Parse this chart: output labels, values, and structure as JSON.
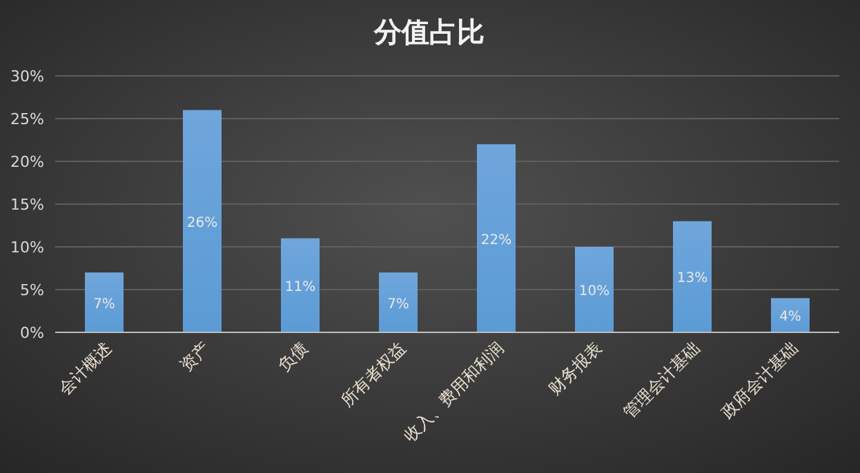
{
  "chart_data": {
    "type": "bar",
    "title": "分值占比",
    "categories": [
      "会计概述",
      "资产",
      "负债",
      "所有者权益",
      "收入、费用和利润",
      "财务报表",
      "管理会计基础",
      "政府会计基础"
    ],
    "values": [
      7,
      26,
      11,
      7,
      22,
      10,
      13,
      4
    ],
    "value_labels": [
      "7%",
      "26%",
      "11%",
      "7%",
      "22%",
      "10%",
      "13%",
      "4%"
    ],
    "color": "#5b9bd5",
    "ylim": [
      0,
      30
    ],
    "yticks": [
      {
        "value": 0,
        "label": "0%"
      },
      {
        "value": 5,
        "label": "5%"
      },
      {
        "value": 10,
        "label": "10%"
      },
      {
        "value": 15,
        "label": "15%"
      },
      {
        "value": 20,
        "label": "20%"
      },
      {
        "value": 25,
        "label": "25%"
      },
      {
        "value": 30,
        "label": "30%"
      }
    ],
    "grid": "y"
  }
}
